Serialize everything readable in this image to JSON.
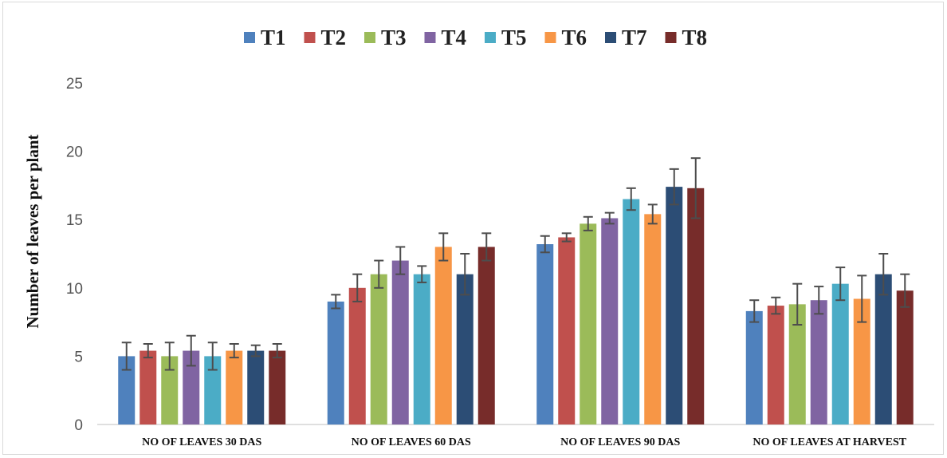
{
  "chart_data": {
    "type": "bar",
    "title": "",
    "xlabel": "",
    "ylabel": "Number of leaves per plant",
    "ylim": [
      0,
      25
    ],
    "yticks": [
      0,
      5,
      10,
      15,
      20,
      25
    ],
    "grid": false,
    "legend_position": "top",
    "categories": [
      "NO OF LEAVES 30 DAS",
      "NO OF LEAVES 60 DAS",
      "NO OF LEAVES 90 DAS",
      "NO OF LEAVES AT HARVEST"
    ],
    "series": [
      {
        "name": "T1",
        "color": "#4f81bd",
        "values": [
          5.0,
          9.0,
          13.2,
          8.3
        ],
        "errors": [
          1.0,
          0.5,
          0.6,
          0.8
        ]
      },
      {
        "name": "T2",
        "color": "#c0504d",
        "values": [
          5.4,
          10.0,
          13.7,
          8.7
        ],
        "errors": [
          0.5,
          1.0,
          0.3,
          0.6
        ]
      },
      {
        "name": "T3",
        "color": "#9bbb59",
        "values": [
          5.0,
          11.0,
          14.7,
          8.8
        ],
        "errors": [
          1.0,
          1.0,
          0.5,
          1.5
        ]
      },
      {
        "name": "T4",
        "color": "#8064a2",
        "values": [
          5.4,
          12.0,
          15.1,
          9.1
        ],
        "errors": [
          1.1,
          1.0,
          0.4,
          1.0
        ]
      },
      {
        "name": "T5",
        "color": "#4bacc6",
        "values": [
          5.0,
          11.0,
          16.5,
          10.3
        ],
        "errors": [
          1.0,
          0.6,
          0.8,
          1.2
        ]
      },
      {
        "name": "T6",
        "color": "#f79646",
        "values": [
          5.4,
          13.0,
          15.4,
          9.2
        ],
        "errors": [
          0.5,
          1.0,
          0.7,
          1.7
        ]
      },
      {
        "name": "T7",
        "color": "#2c4d75",
        "values": [
          5.4,
          11.0,
          17.4,
          11.0
        ],
        "errors": [
          0.4,
          1.5,
          1.3,
          1.5
        ]
      },
      {
        "name": "T8",
        "color": "#772c2a",
        "values": [
          5.4,
          13.0,
          17.3,
          9.8
        ],
        "errors": [
          0.5,
          1.0,
          2.2,
          1.2
        ]
      }
    ]
  }
}
